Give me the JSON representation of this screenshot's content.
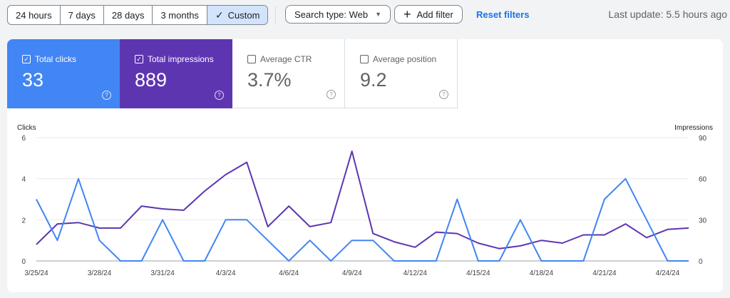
{
  "toolbar": {
    "date_ranges": [
      {
        "label": "24 hours",
        "active": false
      },
      {
        "label": "7 days",
        "active": false
      },
      {
        "label": "28 days",
        "active": false
      },
      {
        "label": "3 months",
        "active": false
      },
      {
        "label": "Custom",
        "active": true
      }
    ],
    "search_type_label": "Search type: Web",
    "add_filter_label": "Add filter",
    "reset_filters_label": "Reset filters",
    "last_update": "Last update: 5.5 hours ago"
  },
  "metrics": [
    {
      "id": "clicks",
      "label": "Total clicks",
      "value": "33",
      "checked": true,
      "color": "#4285f4"
    },
    {
      "id": "impressions",
      "label": "Total impressions",
      "value": "889",
      "checked": true,
      "color": "#5e35b1"
    },
    {
      "id": "ctr",
      "label": "Average CTR",
      "value": "3.7%",
      "checked": false
    },
    {
      "id": "position",
      "label": "Average position",
      "value": "9.2",
      "checked": false
    }
  ],
  "chart_data": {
    "type": "line",
    "left_axis_label": "Clicks",
    "right_axis_label": "Impressions",
    "left_ylim": [
      0,
      6
    ],
    "left_ticks": [
      "0",
      "2",
      "4",
      "6"
    ],
    "right_ylim": [
      0,
      90
    ],
    "right_ticks": [
      "0",
      "30",
      "60",
      "90"
    ],
    "x": [
      "3/25/24",
      "3/26/24",
      "3/27/24",
      "3/28/24",
      "3/29/24",
      "3/30/24",
      "3/31/24",
      "4/1/24",
      "4/2/24",
      "4/3/24",
      "4/4/24",
      "4/5/24",
      "4/6/24",
      "4/7/24",
      "4/8/24",
      "4/9/24",
      "4/10/24",
      "4/11/24",
      "4/12/24",
      "4/13/24",
      "4/14/24",
      "4/15/24",
      "4/16/24",
      "4/17/24",
      "4/18/24",
      "4/19/24",
      "4/20/24",
      "4/21/24",
      "4/22/24",
      "4/23/24",
      "4/24/24",
      "4/25/24"
    ],
    "x_tick_labels": [
      "3/25/24",
      "3/28/24",
      "3/31/24",
      "4/3/24",
      "4/6/24",
      "4/9/24",
      "4/12/24",
      "4/15/24",
      "4/18/24",
      "4/21/24",
      "4/24/24"
    ],
    "grid": true,
    "series": [
      {
        "name": "Clicks",
        "axis": "left",
        "color": "#4285f4",
        "values": [
          3,
          1,
          4,
          1,
          0,
          0,
          2,
          0,
          0,
          2,
          2,
          1,
          0,
          1,
          0,
          1,
          1,
          0,
          0,
          0,
          3,
          0,
          0,
          2,
          0,
          0,
          0,
          3,
          4,
          2,
          0,
          0
        ]
      },
      {
        "name": "Impressions",
        "axis": "right",
        "color": "#5e35b1",
        "values": [
          12,
          27,
          28,
          24,
          24,
          40,
          38,
          37,
          51,
          63,
          72,
          25,
          40,
          25,
          28,
          80,
          20,
          14,
          10,
          21,
          20,
          13,
          9,
          11,
          15,
          13,
          19,
          19,
          27,
          17,
          23,
          24
        ]
      }
    ]
  }
}
